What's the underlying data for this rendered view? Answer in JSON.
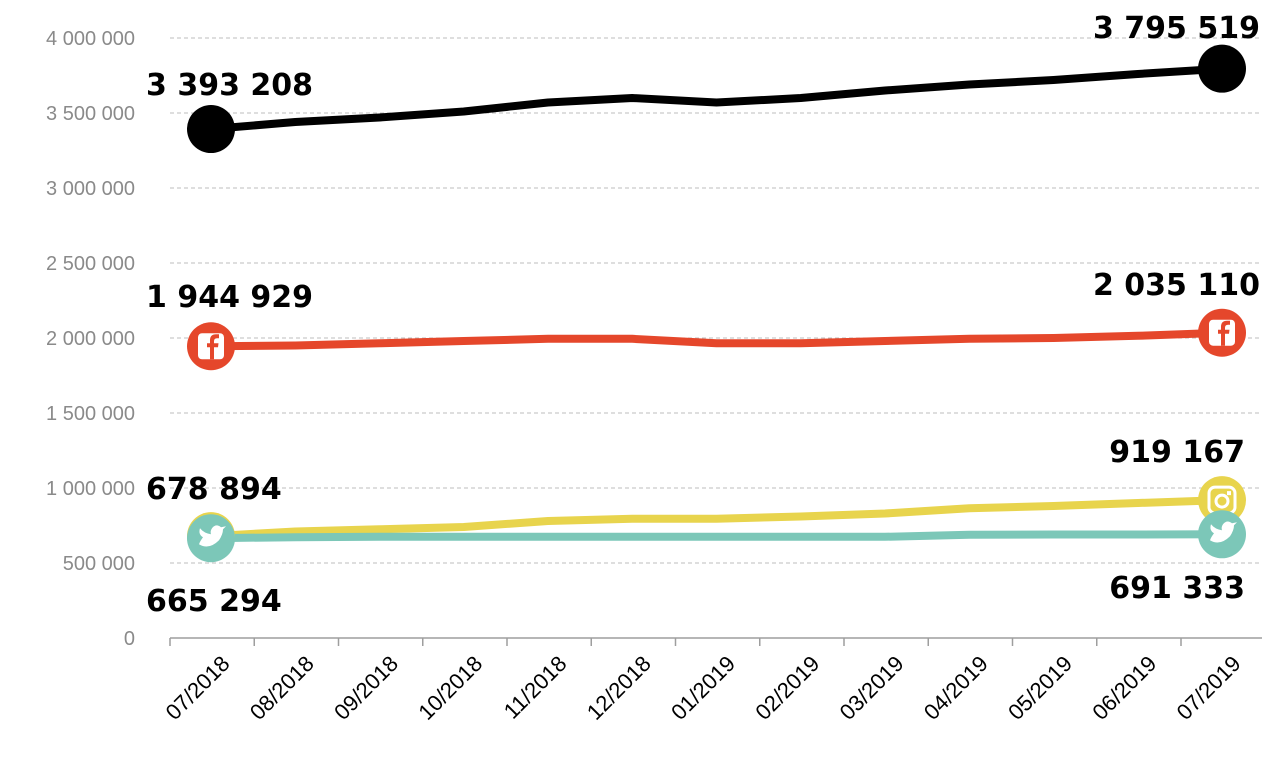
{
  "chart_data": {
    "type": "line",
    "categories": [
      "07/2018",
      "08/2018",
      "09/2018",
      "10/2018",
      "11/2018",
      "12/2018",
      "01/2019",
      "02/2019",
      "03/2019",
      "04/2019",
      "05/2019",
      "06/2019",
      "07/2019"
    ],
    "y_ticks": [
      "0",
      "500 000",
      "1 000 000",
      "1 500 000",
      "2 000 000",
      "2 500 000",
      "3 000 000",
      "3 500 000",
      "4 000 000"
    ],
    "ylim": [
      0,
      4000000
    ],
    "grid": true,
    "legend": "none",
    "series": [
      {
        "key": "total",
        "color": "#000000",
        "icon": "circle-marker",
        "values": [
          3393208,
          3440000,
          3470000,
          3510000,
          3570000,
          3600000,
          3570000,
          3600000,
          3650000,
          3690000,
          3720000,
          3760000,
          3795519
        ],
        "start_label": "3 393 208",
        "end_label": "3 795 519"
      },
      {
        "key": "facebook",
        "color": "#e5472b",
        "icon": "facebook-icon",
        "values": [
          1944929,
          1950000,
          1965000,
          1980000,
          1995000,
          1995000,
          1965000,
          1965000,
          1980000,
          1995000,
          2000000,
          2015000,
          2035110
        ],
        "start_label": "1 944 929",
        "end_label": "2 035 110"
      },
      {
        "key": "instagram",
        "color": "#e8d44d",
        "icon": "instagram-icon",
        "values": [
          678894,
          710000,
          725000,
          740000,
          780000,
          795000,
          795000,
          810000,
          830000,
          865000,
          880000,
          900000,
          919167
        ],
        "start_label": "678 894",
        "end_label": "919 167"
      },
      {
        "key": "twitter",
        "color": "#7cc7b8",
        "icon": "twitter-icon",
        "values": [
          665294,
          672000,
          675000,
          675000,
          675000,
          675000,
          675000,
          675000,
          675000,
          688000,
          690000,
          690000,
          691333
        ],
        "start_label": "665 294",
        "end_label": "691 333"
      }
    ]
  }
}
